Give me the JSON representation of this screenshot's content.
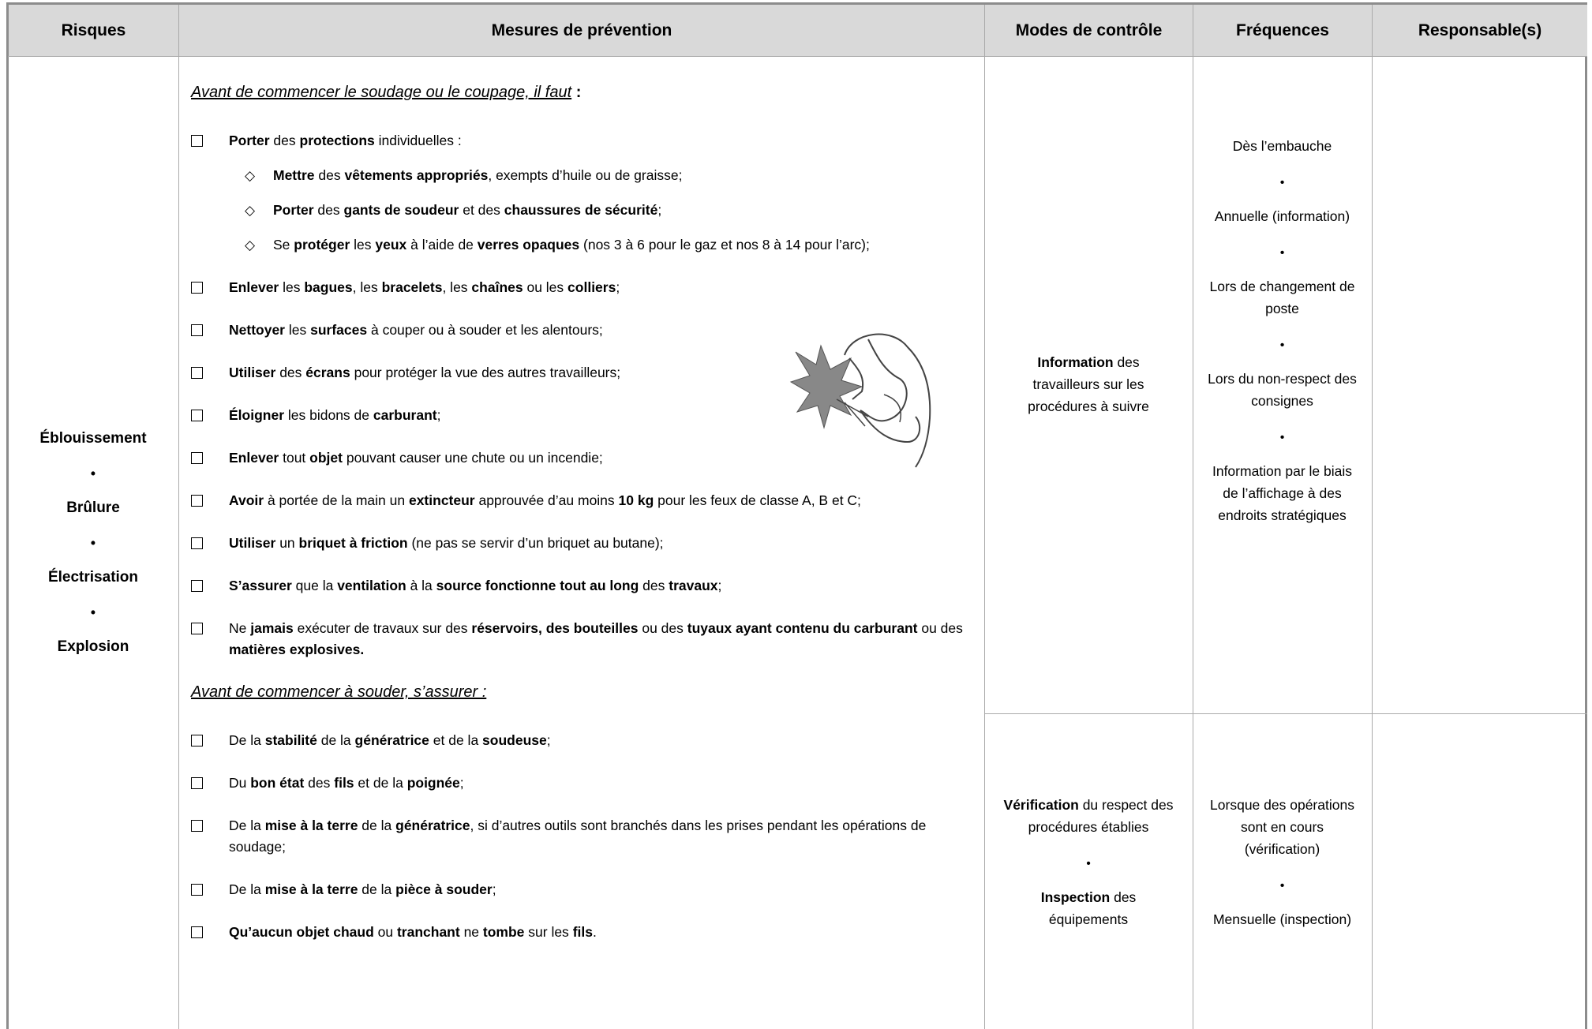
{
  "table": {
    "headers": [
      "Risques",
      "Mesures de prévention",
      "Modes de contrôle",
      "Fréquences",
      "Responsable(s)"
    ],
    "risques": [
      "Éblouissement",
      "Brûlure",
      "Électrisation",
      "Explosion"
    ],
    "mesures": {
      "sections": [
        {
          "heading": [
            {
              "u": "Avant de commencer le soudage ou le coupage, il faut"
            },
            {
              "bold": " :"
            }
          ],
          "items": [
            {
              "runs": [
                {
                  "bold": "Porter"
                },
                " des ",
                {
                  "bold": "protections"
                },
                " individuelles :"
              ],
              "subitems": [
                [
                  {
                    "bold": "Mettre"
                  },
                  " des ",
                  {
                    "bold": "vêtements appropriés"
                  },
                  ", exempts d’huile ou de graisse;"
                ],
                [
                  {
                    "bold": "Porter"
                  },
                  " des ",
                  {
                    "bold": "gants de soudeur"
                  },
                  " et des ",
                  {
                    "bold": "chaussures de sécurité"
                  },
                  ";"
                ],
                [
                  "Se ",
                  {
                    "bold": "protéger"
                  },
                  " les ",
                  {
                    "bold": "yeux"
                  },
                  " à l’aide de ",
                  {
                    "bold": "verres opaques"
                  },
                  " (nos 3 à 6 pour le gaz et nos 8 à 14 pour l’arc);"
                ]
              ]
            },
            {
              "runs": [
                {
                  "bold": "Enlever"
                },
                " les ",
                {
                  "bold": "bagues"
                },
                ", les ",
                {
                  "bold": "bracelets"
                },
                ", les ",
                {
                  "bold": "chaînes"
                },
                " ou les ",
                {
                  "bold": "colliers"
                },
                ";"
              ]
            },
            {
              "runs": [
                {
                  "bold": "Nettoyer"
                },
                " les ",
                {
                  "bold": "surfaces"
                },
                " à couper ou à souder et les alentours;"
              ]
            },
            {
              "runs": [
                {
                  "bold": "Utiliser"
                },
                " des ",
                {
                  "bold": "écrans"
                },
                " pour protéger la vue des autres travailleurs;"
              ]
            },
            {
              "runs": [
                {
                  "bold": "Éloigner"
                },
                " les bidons de ",
                {
                  "bold": "carburant"
                },
                ";"
              ]
            },
            {
              "runs": [
                {
                  "bold": "Enlever"
                },
                " tout ",
                {
                  "bold": "objet"
                },
                " pouvant causer une chute ou un incendie;"
              ]
            },
            {
              "runs": [
                {
                  "bold": "Avoir"
                },
                " à portée de la main un ",
                {
                  "bold": "extincteur"
                },
                " approuvée d’au moins ",
                {
                  "bold": "10 kg"
                },
                " pour les feux de classe A, B et C;"
              ]
            },
            {
              "runs": [
                {
                  "bold": "Utiliser"
                },
                " un ",
                {
                  "bold": "briquet à friction"
                },
                " (ne pas se servir d’un briquet au butane);"
              ]
            },
            {
              "runs": [
                {
                  "bold": "S’assurer"
                },
                " que la ",
                {
                  "bold": "ventilation"
                },
                " à la ",
                {
                  "bold": "source fonctionne tout au long"
                },
                " des ",
                {
                  "bold": "travaux"
                },
                ";"
              ]
            },
            {
              "runs": [
                "Ne ",
                {
                  "bold": "jamais"
                },
                " exécuter de travaux sur des ",
                {
                  "bold": "réservoirs, des bouteilles"
                },
                " ou des ",
                {
                  "bold": "tuyaux ayant contenu du carburant"
                },
                " ou des ",
                {
                  "bold": "matières explosives."
                }
              ]
            }
          ]
        },
        {
          "heading": [
            {
              "u": "Avant de commencer à souder, s’assurer :"
            }
          ],
          "items": [
            {
              "runs": [
                "De la ",
                {
                  "bold": "stabilité"
                },
                " de la ",
                {
                  "bold": "génératrice"
                },
                " et de la ",
                {
                  "bold": "soudeuse"
                },
                ";"
              ]
            },
            {
              "runs": [
                "Du ",
                {
                  "bold": "bon état"
                },
                " des ",
                {
                  "bold": "fils"
                },
                " et de la ",
                {
                  "bold": "poignée"
                },
                ";"
              ]
            },
            {
              "runs": [
                "De la ",
                {
                  "bold": "mise à la terre"
                },
                " de la ",
                {
                  "bold": "génératrice"
                },
                ", si d’autres outils sont branchés dans les prises pendant les opérations de soudage;"
              ]
            },
            {
              "runs": [
                "De la ",
                {
                  "bold": "mise à la terre"
                },
                " de la ",
                {
                  "bold": "pièce à souder"
                },
                ";"
              ]
            },
            {
              "runs": [
                {
                  "bold": "Qu’aucun objet chaud"
                },
                " ou ",
                {
                  "bold": "tranchant"
                },
                " ne ",
                {
                  "bold": "tombe"
                },
                " sur les ",
                {
                  "bold": "fils"
                },
                "."
              ]
            }
          ]
        }
      ]
    },
    "modes": [
      [
        [
          {
            "bold": "Information"
          },
          " des travailleurs sur les procédures à suivre"
        ]
      ],
      [
        [
          {
            "bold": "Vérification"
          },
          " du respect des procédures établies"
        ],
        [
          {
            "bold": "Inspection"
          },
          " des équipements"
        ]
      ]
    ],
    "frequences": [
      [
        "Dès l’embauche",
        "Annuelle (information)",
        "Lors de changement de poste",
        "Lors du non-respect des consignes",
        "Information par le biais de l’affichage à des endroits stratégiques"
      ],
      [
        "Lorsque des opérations sont en cours (vérification)",
        "Mensuelle (inspection)"
      ]
    ]
  }
}
